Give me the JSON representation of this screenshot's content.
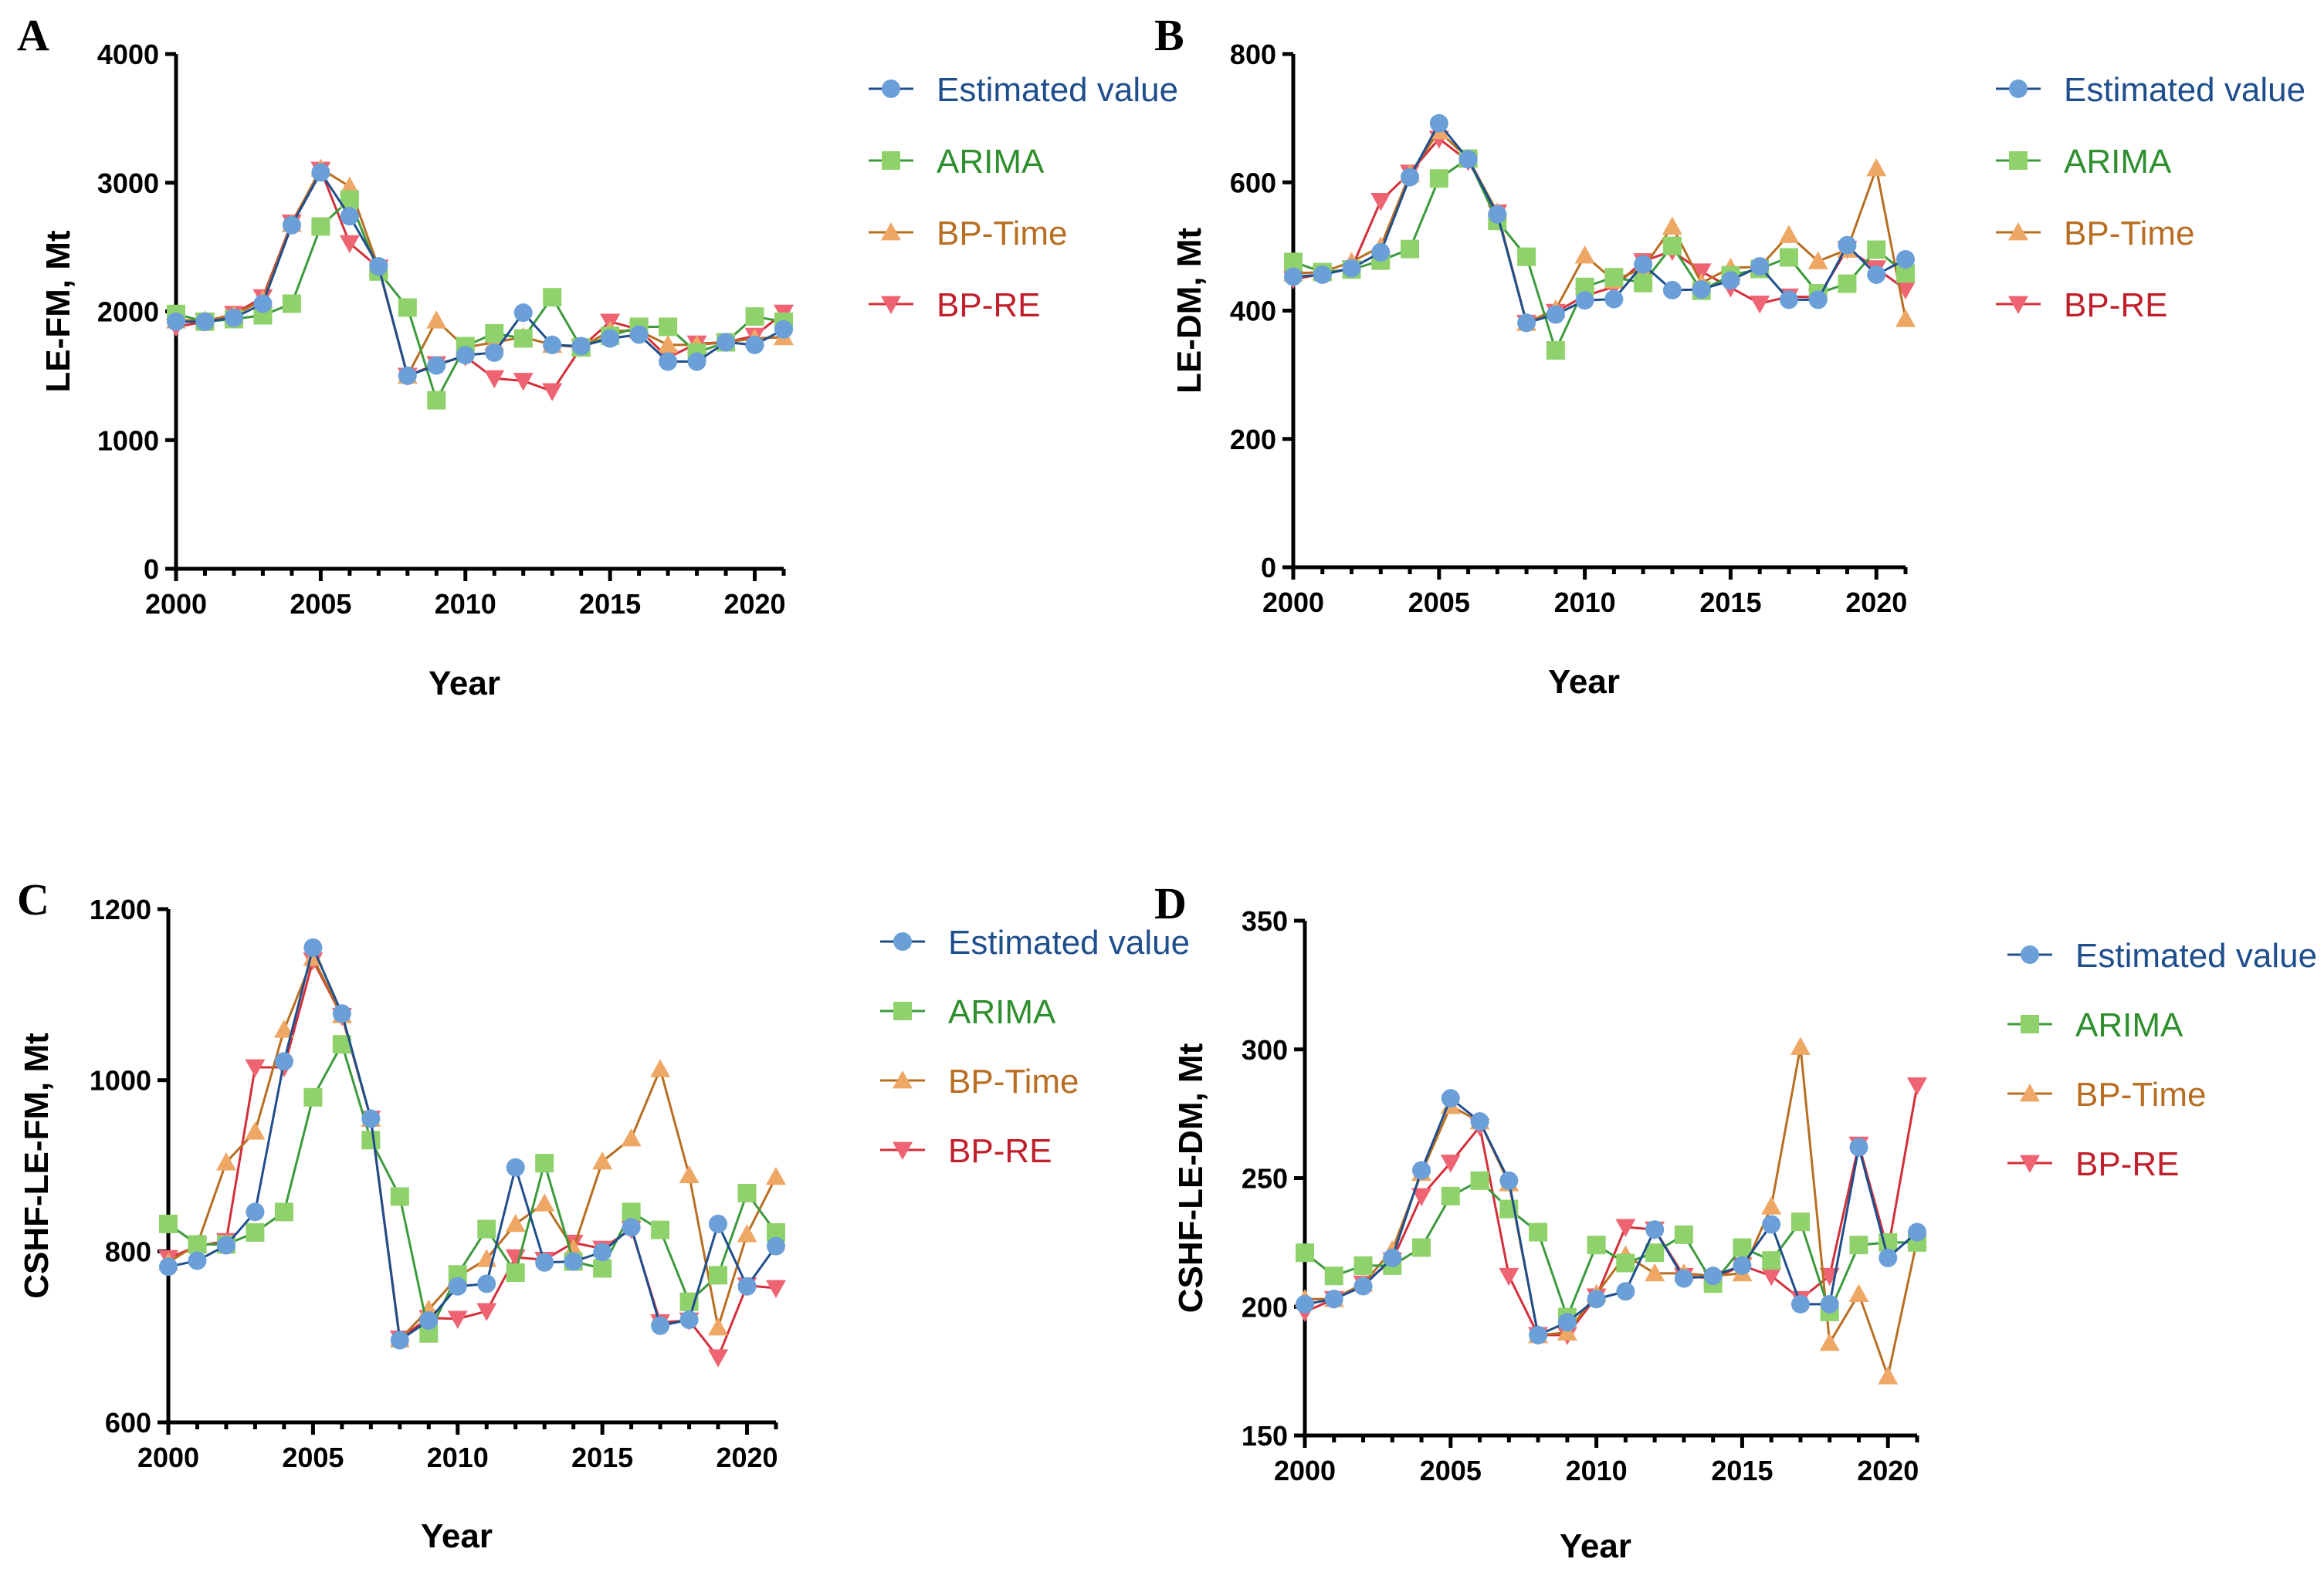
{
  "series_styles": [
    {
      "name": "Estimated value",
      "line_color": "#1f4e8c",
      "marker_color": "#6a9fd8",
      "text_color": "#1f4e8c",
      "marker": "circle"
    },
    {
      "name": "ARIMA",
      "line_color": "#3c9a3c",
      "marker_color": "#8fd26b",
      "text_color": "#2f8f2f",
      "marker": "square"
    },
    {
      "name": "BP-Time",
      "line_color": "#b86e22",
      "marker_color": "#eea765",
      "text_color": "#b86e22",
      "marker": "triangle-up"
    },
    {
      "name": "BP-RE",
      "line_color": "#d32f3a",
      "marker_color": "#ef6472",
      "text_color": "#c0202c",
      "marker": "triangle-down"
    }
  ],
  "chart_data": [
    {
      "panel": "A",
      "type": "line",
      "xlabel": "Year",
      "ylabel": "LE-FM, Mt",
      "xlim": [
        2000,
        2021
      ],
      "ylim": [
        0,
        4000
      ],
      "xticks": [
        2000,
        2005,
        2010,
        2015,
        2020
      ],
      "yticks": [
        0,
        1000,
        2000,
        3000,
        4000
      ],
      "legend_position": "right",
      "x": [
        2000,
        2001,
        2002,
        2003,
        2004,
        2005,
        2006,
        2007,
        2008,
        2009,
        2010,
        2011,
        2012,
        2013,
        2014,
        2015,
        2016,
        2017,
        2018,
        2019,
        2020,
        2021
      ],
      "series": [
        {
          "name": "Estimated value",
          "values": [
            1920,
            1920,
            1950,
            2060,
            2670,
            3080,
            2740,
            2350,
            1500,
            1580,
            1660,
            1680,
            1990,
            1740,
            1730,
            1790,
            1820,
            1610,
            1610,
            1760,
            1740,
            1860
          ]
        },
        {
          "name": "ARIMA",
          "values": [
            1980,
            1920,
            1940,
            1970,
            2060,
            2660,
            2870,
            2310,
            2030,
            1310,
            1730,
            1830,
            1790,
            2110,
            1720,
            1810,
            1880,
            1880,
            1680,
            1760,
            1960,
            1920
          ]
        },
        {
          "name": "BP-Time",
          "values": [
            1930,
            1930,
            1970,
            2090,
            2680,
            3110,
            2970,
            2340,
            1500,
            1930,
            1720,
            1760,
            1800,
            1740,
            1720,
            1850,
            1850,
            1740,
            1740,
            1760,
            1790,
            1800
          ]
        },
        {
          "name": "BP-RE",
          "values": [
            1880,
            1920,
            1980,
            2110,
            2690,
            3100,
            2530,
            2340,
            1500,
            1590,
            1650,
            1480,
            1460,
            1380,
            1720,
            1920,
            1860,
            1640,
            1750,
            1760,
            1810,
            1990
          ]
        }
      ]
    },
    {
      "panel": "B",
      "type": "line",
      "xlabel": "Year",
      "ylabel": "LE-DM, Mt",
      "xlim": [
        2000,
        2021
      ],
      "ylim": [
        0,
        800
      ],
      "xticks": [
        2000,
        2005,
        2010,
        2015,
        2020
      ],
      "yticks": [
        0,
        200,
        400,
        600,
        800
      ],
      "legend_position": "right",
      "x": [
        2000,
        2001,
        2002,
        2003,
        2004,
        2005,
        2006,
        2007,
        2008,
        2009,
        2010,
        2011,
        2012,
        2013,
        2014,
        2015,
        2016,
        2017,
        2018,
        2019,
        2020,
        2021
      ],
      "series": [
        {
          "name": "Estimated value",
          "values": [
            453,
            456,
            466,
            491,
            608,
            692,
            636,
            550,
            381,
            394,
            416,
            418,
            472,
            432,
            433,
            447,
            469,
            417,
            417,
            502,
            456,
            480
          ]
        },
        {
          "name": "ARIMA",
          "values": [
            476,
            460,
            464,
            478,
            496,
            606,
            637,
            540,
            484,
            338,
            437,
            452,
            443,
            501,
            431,
            455,
            465,
            483,
            427,
            442,
            495,
            458
          ]
        },
        {
          "name": "BP-Time",
          "values": [
            458,
            460,
            476,
            500,
            613,
            680,
            637,
            553,
            381,
            402,
            486,
            447,
            466,
            531,
            443,
            467,
            468,
            518,
            477,
            495,
            622,
            387
          ]
        },
        {
          "name": "BP-RE",
          "values": [
            449,
            457,
            466,
            571,
            615,
            668,
            633,
            553,
            381,
            398,
            423,
            437,
            477,
            493,
            461,
            436,
            411,
            422,
            421,
            496,
            466,
            433
          ]
        }
      ]
    },
    {
      "panel": "C",
      "type": "line",
      "xlabel": "Year",
      "ylabel": "CSHF-LE-FM, Mt",
      "xlim": [
        2000,
        2021
      ],
      "ylim": [
        600,
        1200
      ],
      "xticks": [
        2000,
        2005,
        2010,
        2015,
        2020
      ],
      "yticks": [
        600,
        800,
        1000,
        1200
      ],
      "legend_position": "right",
      "x": [
        2000,
        2001,
        2002,
        2003,
        2004,
        2005,
        2006,
        2007,
        2008,
        2009,
        2010,
        2011,
        2012,
        2013,
        2014,
        2015,
        2016,
        2017,
        2018,
        2019,
        2020,
        2021
      ],
      "series": [
        {
          "name": "Estimated value",
          "values": [
            782,
            789,
            807,
            846,
            1022,
            1155,
            1078,
            955,
            696,
            719,
            759,
            762,
            898,
            787,
            788,
            799,
            828,
            713,
            720,
            832,
            759,
            806
          ]
        },
        {
          "name": "ARIMA",
          "values": [
            832,
            808,
            808,
            822,
            846,
            980,
            1042,
            930,
            864,
            704,
            773,
            826,
            775,
            903,
            788,
            780,
            846,
            825,
            741,
            772,
            868,
            822
          ]
        },
        {
          "name": "BP-Time",
          "values": [
            787,
            808,
            904,
            940,
            1059,
            1143,
            1076,
            955,
            697,
            732,
            770,
            791,
            832,
            856,
            803,
            905,
            932,
            1013,
            889,
            711,
            820,
            887
          ]
        },
        {
          "name": "BP-RE",
          "values": [
            792,
            806,
            812,
            1015,
            1015,
            1140,
            1075,
            955,
            698,
            722,
            721,
            730,
            793,
            790,
            810,
            803,
            826,
            717,
            719,
            676,
            760,
            757
          ]
        }
      ]
    },
    {
      "panel": "D",
      "type": "line",
      "xlabel": "Year",
      "ylabel": "CSHF-LE-DM, Mt",
      "xlim": [
        2000,
        2021
      ],
      "ylim": [
        150,
        350
      ],
      "xticks": [
        2000,
        2005,
        2010,
        2015,
        2020
      ],
      "yticks": [
        150,
        200,
        250,
        300,
        350
      ],
      "legend_position": "right",
      "x": [
        2000,
        2001,
        2002,
        2003,
        2004,
        2005,
        2006,
        2007,
        2008,
        2009,
        2010,
        2011,
        2012,
        2013,
        2014,
        2015,
        2016,
        2017,
        2018,
        2019,
        2020,
        2021
      ],
      "series": [
        {
          "name": "Estimated value",
          "values": [
            201,
            203,
            208,
            219,
            253,
            281,
            272,
            249,
            189,
            194,
            203,
            206,
            230,
            211,
            212,
            216,
            232,
            201,
            201,
            262,
            219,
            229
          ]
        },
        {
          "name": "ARIMA",
          "values": [
            221,
            212,
            216,
            216,
            223,
            243,
            249,
            238,
            229,
            196,
            224,
            217,
            221,
            228,
            209,
            223,
            218,
            233,
            198,
            224,
            225,
            225
          ]
        },
        {
          "name": "BP-Time",
          "values": [
            203,
            203,
            209,
            222,
            252,
            278,
            272,
            248,
            189,
            190,
            205,
            220,
            213,
            213,
            212,
            213,
            239,
            301,
            186,
            205,
            173,
            226
          ]
        },
        {
          "name": "BP-RE",
          "values": [
            198,
            203,
            209,
            218,
            243,
            256,
            270,
            212,
            189,
            189,
            204,
            231,
            230,
            212,
            211,
            216,
            212,
            203,
            212,
            263,
            222,
            286
          ]
        }
      ]
    }
  ]
}
